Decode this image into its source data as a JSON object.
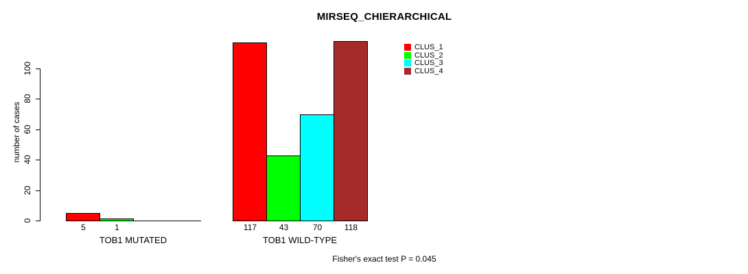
{
  "chart_data": {
    "type": "bar",
    "title": "MIRSEQ_CHIERARCHICAL",
    "ylabel": "number of cases",
    "xlabel": "",
    "ylim": [
      0,
      118
    ],
    "yticks": [
      0,
      20,
      40,
      60,
      80,
      100
    ],
    "grid": false,
    "categories": [
      "TOB1 MUTATED",
      "TOB1 WILD-TYPE"
    ],
    "series": [
      {
        "name": "CLUS_1",
        "color": "#FF0000",
        "values": [
          5,
          117
        ]
      },
      {
        "name": "CLUS_2",
        "color": "#00FF00",
        "values": [
          1,
          43
        ]
      },
      {
        "name": "CLUS_3",
        "color": "#00FFFF",
        "values": [
          0,
          70
        ]
      },
      {
        "name": "CLUS_4",
        "color": "#A52A2A",
        "values": [
          0,
          118
        ]
      }
    ],
    "bar_value_labels_shown": true,
    "legend": {
      "position": "top-right",
      "entries": [
        "CLUS_1",
        "CLUS_2",
        "CLUS_3",
        "CLUS_4"
      ]
    },
    "annotation": "Fisher's exact test P = 0.045"
  }
}
